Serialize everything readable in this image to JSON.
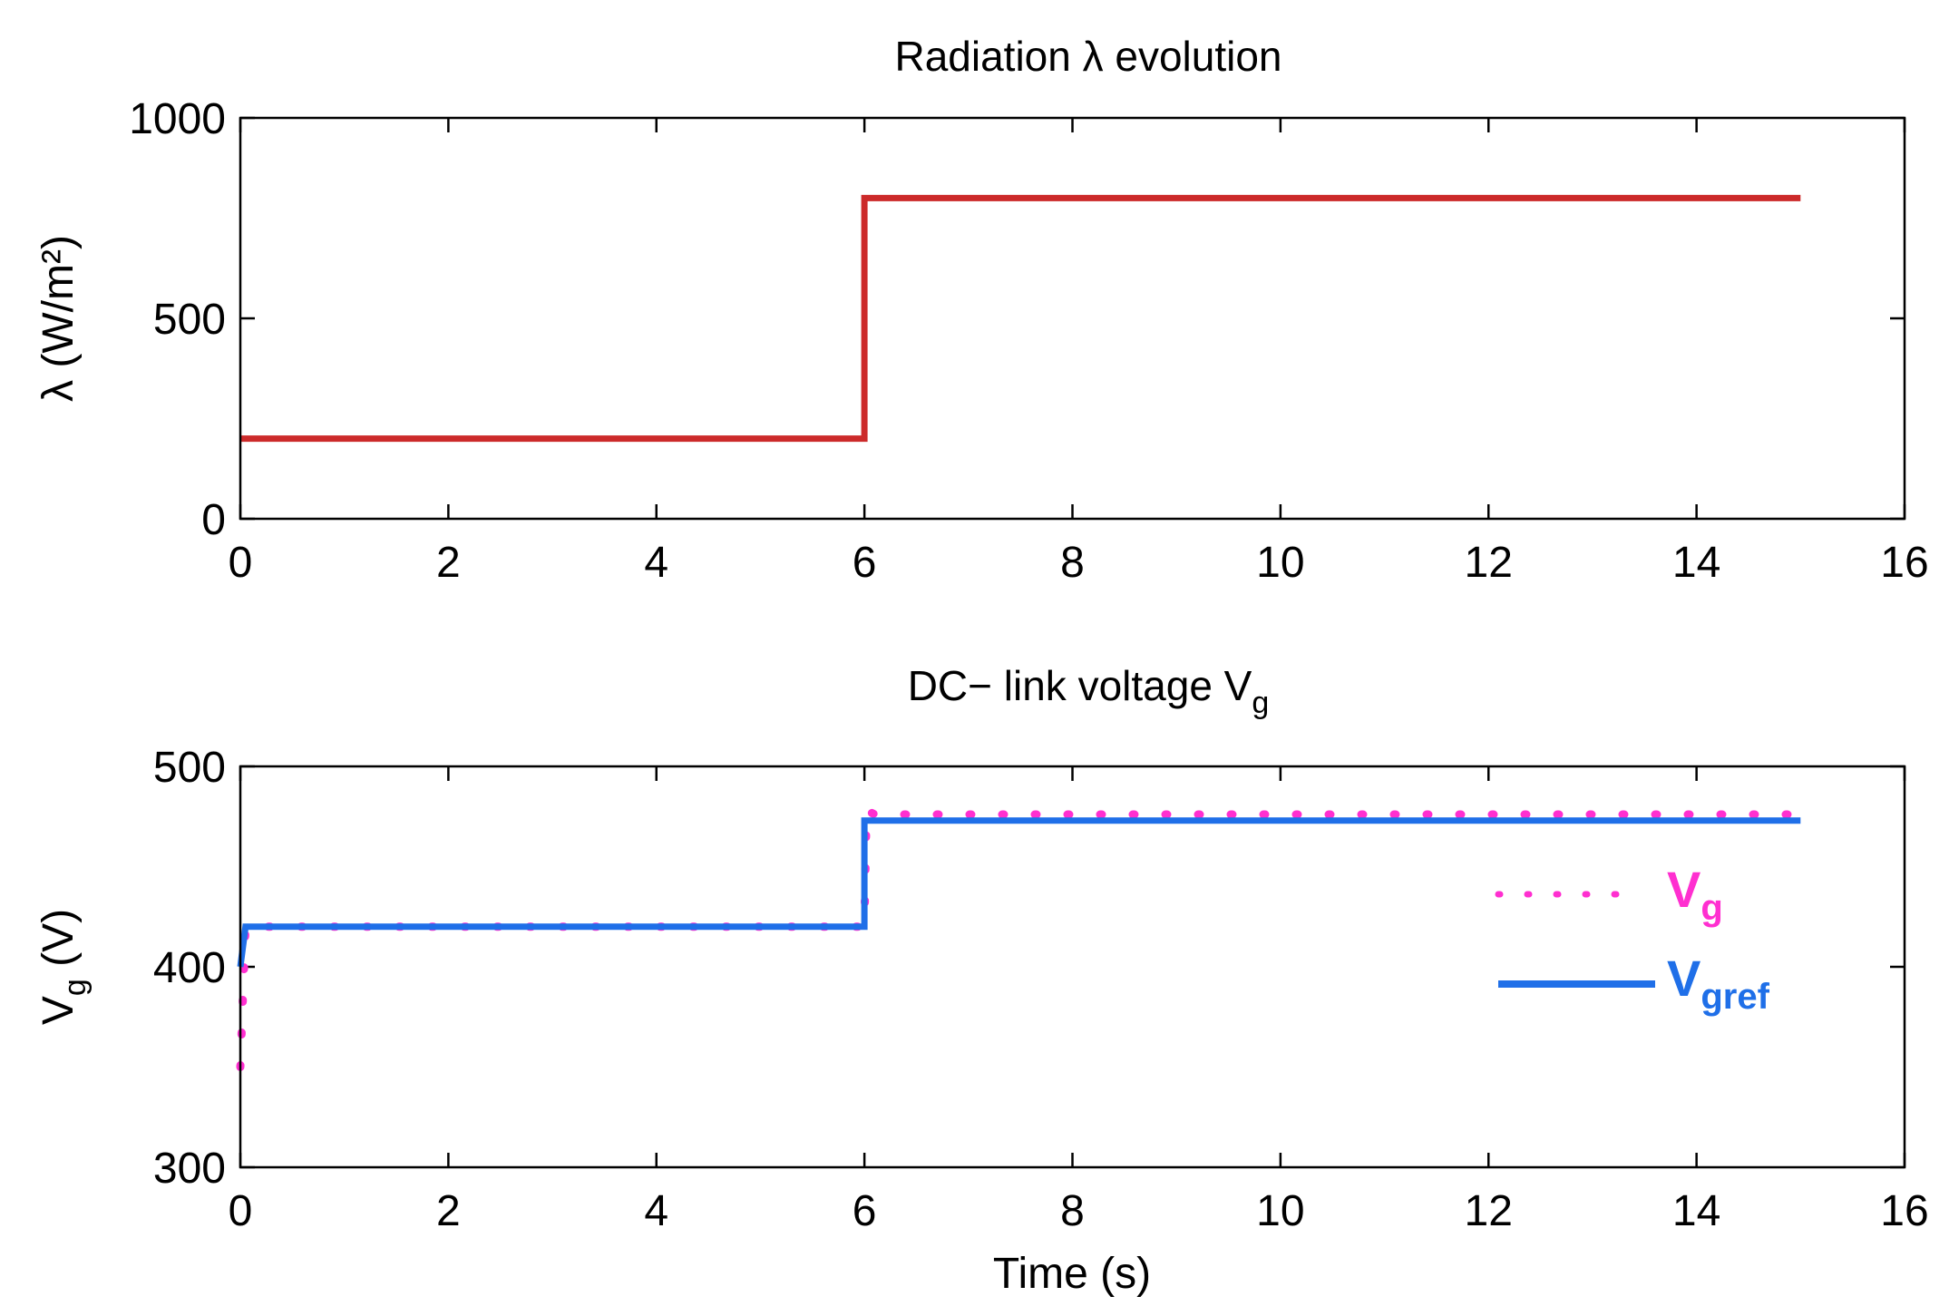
{
  "chart_data": [
    {
      "type": "line",
      "title": "Radiation λ evolution",
      "xlabel": "",
      "ylabel": "λ (W/m²)",
      "xlim": [
        0,
        16
      ],
      "ylim": [
        0,
        1000
      ],
      "xticks": [
        "0",
        "2",
        "4",
        "6",
        "8",
        "10",
        "12",
        "14",
        "16"
      ],
      "yticks": [
        "0",
        "500",
        "1000"
      ],
      "grid": false,
      "series": [
        {
          "color": "#cc2a2a",
          "style": "solid",
          "x": [
            0,
            6,
            6,
            15
          ],
          "y": [
            200,
            200,
            800,
            800
          ]
        }
      ]
    },
    {
      "type": "line",
      "title": "DC− link voltage V",
      "title_sub": "g",
      "xlabel": "Time (s)",
      "ylabel": "V",
      "ylabel_sub": "g",
      "ylabel_unit": " (V)",
      "xlim": [
        0,
        16
      ],
      "ylim": [
        300,
        500
      ],
      "xticks": [
        "0",
        "2",
        "4",
        "6",
        "8",
        "10",
        "12",
        "14",
        "16"
      ],
      "yticks": [
        "300",
        "400",
        "500"
      ],
      "grid": false,
      "legend_position": "right",
      "series": [
        {
          "name": "V",
          "name_sub": "g",
          "color": "#ff2fd0",
          "style": "dotted",
          "x": [
            0,
            0.05,
            6,
            6.02,
            6.1,
            15
          ],
          "y": [
            350,
            420,
            420,
            478,
            476,
            476
          ]
        },
        {
          "name": "V",
          "name_sub": "gref",
          "color": "#1f6fe8",
          "style": "solid",
          "x": [
            0,
            0.05,
            6,
            6,
            15
          ],
          "y": [
            400,
            420,
            420,
            473,
            473
          ]
        }
      ]
    }
  ]
}
